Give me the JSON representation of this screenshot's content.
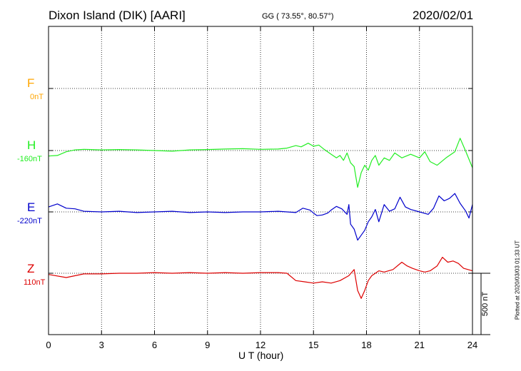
{
  "header": {
    "station": "Dixon Island (DIK)  [AARI]",
    "coords": "GG ( 73.55°,  80.57°)",
    "date": "2020/02/01"
  },
  "side_note": "Plotted at 2020/03/03 01:33 UT",
  "scale_label": "500 nT",
  "chart_data": {
    "type": "line",
    "xlabel": "U T (hour)",
    "x_ticks": [
      "0",
      "3",
      "6",
      "9",
      "12",
      "15",
      "18",
      "21",
      "24"
    ],
    "xlim": [
      0,
      24
    ],
    "grid": true,
    "scale_bar_nT": 500,
    "series": [
      {
        "name": "F",
        "offset_label": "0nT",
        "color": "#ffa500",
        "baseline_nT": 0,
        "points": []
      },
      {
        "name": "H",
        "offset_label": "-160nT",
        "color": "#22ee22",
        "baseline_nT": -160,
        "points": [
          [
            0,
            -45
          ],
          [
            0.5,
            -40
          ],
          [
            1,
            -10
          ],
          [
            1.5,
            5
          ],
          [
            2,
            10
          ],
          [
            3,
            5
          ],
          [
            4,
            8
          ],
          [
            5,
            5
          ],
          [
            6,
            0
          ],
          [
            7,
            -5
          ],
          [
            8,
            5
          ],
          [
            9,
            8
          ],
          [
            10,
            12
          ],
          [
            11,
            15
          ],
          [
            12,
            10
          ],
          [
            13,
            12
          ],
          [
            13.5,
            20
          ],
          [
            14,
            40
          ],
          [
            14.3,
            30
          ],
          [
            14.7,
            60
          ],
          [
            15,
            35
          ],
          [
            15.3,
            45
          ],
          [
            15.6,
            10
          ],
          [
            16,
            -30
          ],
          [
            16.3,
            -60
          ],
          [
            16.5,
            -40
          ],
          [
            16.7,
            -80
          ],
          [
            16.9,
            -20
          ],
          [
            17.1,
            -100
          ],
          [
            17.3,
            -130
          ],
          [
            17.5,
            -300
          ],
          [
            17.7,
            -180
          ],
          [
            17.9,
            -120
          ],
          [
            18.1,
            -160
          ],
          [
            18.3,
            -80
          ],
          [
            18.5,
            -40
          ],
          [
            18.7,
            -120
          ],
          [
            19,
            -60
          ],
          [
            19.3,
            -80
          ],
          [
            19.6,
            -20
          ],
          [
            20,
            -60
          ],
          [
            20.5,
            -30
          ],
          [
            21,
            -60
          ],
          [
            21.3,
            -10
          ],
          [
            21.6,
            -90
          ],
          [
            22,
            -120
          ],
          [
            22.5,
            -60
          ],
          [
            23,
            -10
          ],
          [
            23.3,
            100
          ],
          [
            23.6,
            0
          ],
          [
            24,
            -140
          ]
        ]
      },
      {
        "name": "E",
        "offset_label": "-220nT",
        "color": "#0000cc",
        "baseline_nT": -220,
        "points": [
          [
            0,
            40
          ],
          [
            0.5,
            65
          ],
          [
            1,
            30
          ],
          [
            1.5,
            25
          ],
          [
            2,
            5
          ],
          [
            3,
            0
          ],
          [
            4,
            5
          ],
          [
            5,
            -5
          ],
          [
            6,
            0
          ],
          [
            7,
            5
          ],
          [
            8,
            -5
          ],
          [
            9,
            0
          ],
          [
            10,
            -5
          ],
          [
            11,
            0
          ],
          [
            12,
            0
          ],
          [
            13,
            5
          ],
          [
            14,
            -5
          ],
          [
            14.4,
            30
          ],
          [
            14.8,
            15
          ],
          [
            15,
            -10
          ],
          [
            15.2,
            -30
          ],
          [
            15.5,
            -25
          ],
          [
            15.8,
            -10
          ],
          [
            16,
            15
          ],
          [
            16.3,
            45
          ],
          [
            16.6,
            25
          ],
          [
            16.9,
            -20
          ],
          [
            17,
            60
          ],
          [
            17.1,
            -100
          ],
          [
            17.3,
            -140
          ],
          [
            17.5,
            -230
          ],
          [
            17.7,
            -190
          ],
          [
            17.9,
            -150
          ],
          [
            18.1,
            -80
          ],
          [
            18.3,
            -40
          ],
          [
            18.5,
            20
          ],
          [
            18.7,
            -80
          ],
          [
            19,
            60
          ],
          [
            19.3,
            5
          ],
          [
            19.6,
            25
          ],
          [
            19.9,
            120
          ],
          [
            20.2,
            40
          ],
          [
            20.5,
            20
          ],
          [
            21,
            0
          ],
          [
            21.5,
            -20
          ],
          [
            21.8,
            30
          ],
          [
            22.1,
            130
          ],
          [
            22.4,
            90
          ],
          [
            22.7,
            110
          ],
          [
            23,
            150
          ],
          [
            23.3,
            70
          ],
          [
            23.6,
            10
          ],
          [
            23.8,
            -50
          ],
          [
            24,
            60
          ]
        ]
      },
      {
        "name": "Z",
        "offset_label": "110nT",
        "color": "#dd0000",
        "baseline_nT": 110,
        "points": [
          [
            0,
            -10
          ],
          [
            1,
            -35
          ],
          [
            2,
            -5
          ],
          [
            3,
            -5
          ],
          [
            4,
            0
          ],
          [
            5,
            0
          ],
          [
            6,
            5
          ],
          [
            7,
            0
          ],
          [
            8,
            5
          ],
          [
            9,
            0
          ],
          [
            10,
            5
          ],
          [
            11,
            0
          ],
          [
            12,
            5
          ],
          [
            13,
            5
          ],
          [
            13.5,
            0
          ],
          [
            14,
            -60
          ],
          [
            14.5,
            -70
          ],
          [
            15,
            -80
          ],
          [
            15.5,
            -70
          ],
          [
            16,
            -80
          ],
          [
            16.5,
            -60
          ],
          [
            17,
            -20
          ],
          [
            17.3,
            30
          ],
          [
            17.5,
            -140
          ],
          [
            17.7,
            -205
          ],
          [
            17.9,
            -140
          ],
          [
            18.1,
            -60
          ],
          [
            18.3,
            -20
          ],
          [
            18.5,
            0
          ],
          [
            18.7,
            20
          ],
          [
            19,
            10
          ],
          [
            19.5,
            30
          ],
          [
            20,
            90
          ],
          [
            20.3,
            60
          ],
          [
            20.6,
            40
          ],
          [
            21,
            20
          ],
          [
            21.3,
            10
          ],
          [
            21.6,
            20
          ],
          [
            22,
            60
          ],
          [
            22.3,
            130
          ],
          [
            22.6,
            90
          ],
          [
            22.9,
            100
          ],
          [
            23.2,
            80
          ],
          [
            23.5,
            40
          ],
          [
            24,
            20
          ]
        ]
      }
    ]
  }
}
